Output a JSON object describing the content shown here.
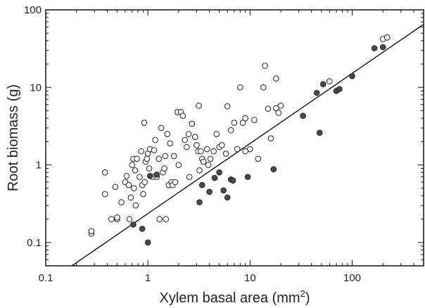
{
  "chart_data": {
    "type": "scatter",
    "title": "",
    "xlabel": "Xylem basal area  (mm",
    "xlabel_sup": "2",
    "xlabel_close": ")",
    "ylabel": "Root biomass  (g)",
    "xscale": "log",
    "yscale": "log",
    "xlim": [
      0.1,
      500
    ],
    "ylim": [
      0.05,
      100
    ],
    "grid": false,
    "legend": "none",
    "x_ticks": [
      {
        "value": 0.1,
        "label": "0.1"
      },
      {
        "value": 1,
        "label": "1"
      },
      {
        "value": 10,
        "label": "10"
      },
      {
        "value": 100,
        "label": "100"
      }
    ],
    "y_ticks": [
      {
        "value": 0.1,
        "label": "0.1"
      },
      {
        "value": 1,
        "label": "1"
      },
      {
        "value": 10,
        "label": "10"
      },
      {
        "value": 100,
        "label": "100"
      }
    ],
    "fit_line": {
      "x": [
        0.18,
        500
      ],
      "y": [
        0.05,
        65
      ]
    },
    "series": [
      {
        "marker": "open-circle",
        "color": "#ffffff",
        "x": [
          0.28,
          0.28,
          0.38,
          0.38,
          0.44,
          0.48,
          0.5,
          0.5,
          0.55,
          0.6,
          0.62,
          0.65,
          0.66,
          0.68,
          0.7,
          0.72,
          0.73,
          0.75,
          0.76,
          0.78,
          0.83,
          0.86,
          0.88,
          0.9,
          0.92,
          0.93,
          0.95,
          0.98,
          1.0,
          1.03,
          1.05,
          1.12,
          1.15,
          1.18,
          1.22,
          1.28,
          1.3,
          1.35,
          1.4,
          1.45,
          1.48,
          1.5,
          1.55,
          1.6,
          1.65,
          1.7,
          1.75,
          1.8,
          1.85,
          1.95,
          2.0,
          2.1,
          2.2,
          2.3,
          2.4,
          2.5,
          2.55,
          2.7,
          2.9,
          3.0,
          3.1,
          3.15,
          3.2,
          3.3,
          3.4,
          3.5,
          3.8,
          3.9,
          4.1,
          4.4,
          4.7,
          5.0,
          5.3,
          5.8,
          6.0,
          6.5,
          7.0,
          7.5,
          8.0,
          8.5,
          9.0,
          10.0,
          11.0,
          12.0,
          13.5,
          15.0,
          16.0,
          18.0,
          19.0,
          20.0,
          14.0,
          18.0,
          9.0,
          60.0,
          200.0,
          220.0
        ],
        "y": [
          0.13,
          0.14,
          0.42,
          0.8,
          0.2,
          0.52,
          0.2,
          0.21,
          0.33,
          0.6,
          0.72,
          0.55,
          0.2,
          0.38,
          1.0,
          1.2,
          0.5,
          0.85,
          0.3,
          1.2,
          0.7,
          1.5,
          0.55,
          0.42,
          3.5,
          0.6,
          1.1,
          1.2,
          1.4,
          0.9,
          1.6,
          0.7,
          1.55,
          2.1,
          0.7,
          1.2,
          0.2,
          3.0,
          0.8,
          0.9,
          1.3,
          0.2,
          2.5,
          0.55,
          1.9,
          0.6,
          0.55,
          1.3,
          0.6,
          4.8,
          1.0,
          4.8,
          4.3,
          2.1,
          1.7,
          2.5,
          0.7,
          3.4,
          2.3,
          1.8,
          1.5,
          5.8,
          0.85,
          1.5,
          1.2,
          1.1,
          1.6,
          1.0,
          1.2,
          1.5,
          2.5,
          1.7,
          1.8,
          1.4,
          5.7,
          2.8,
          3.5,
          1.6,
          10.0,
          3.5,
          4.0,
          1.6,
          3.8,
          1.2,
          10.0,
          5.3,
          2.2,
          5.4,
          4.7,
          5.8,
          19.0,
          13.0,
          1.5,
          12.0,
          42.0,
          44.0
        ]
      },
      {
        "marker": "filled-circle",
        "color": "#4a4a4a",
        "x": [
          0.72,
          0.88,
          1.0,
          1.05,
          1.22,
          3.2,
          3.4,
          4.0,
          4.5,
          5.0,
          5.5,
          6.0,
          6.5,
          6.8,
          9.5,
          17.0,
          33.0,
          45.0,
          48.0,
          52.0,
          70.0,
          75.0,
          100.0,
          165.0,
          200.0
        ],
        "y": [
          0.17,
          0.15,
          0.1,
          0.72,
          0.75,
          0.33,
          0.55,
          0.45,
          0.68,
          0.8,
          0.47,
          0.38,
          0.65,
          0.63,
          0.7,
          0.88,
          4.3,
          8.5,
          2.6,
          11.0,
          9.0,
          9.5,
          14.0,
          32.0,
          33.0
        ]
      }
    ]
  }
}
